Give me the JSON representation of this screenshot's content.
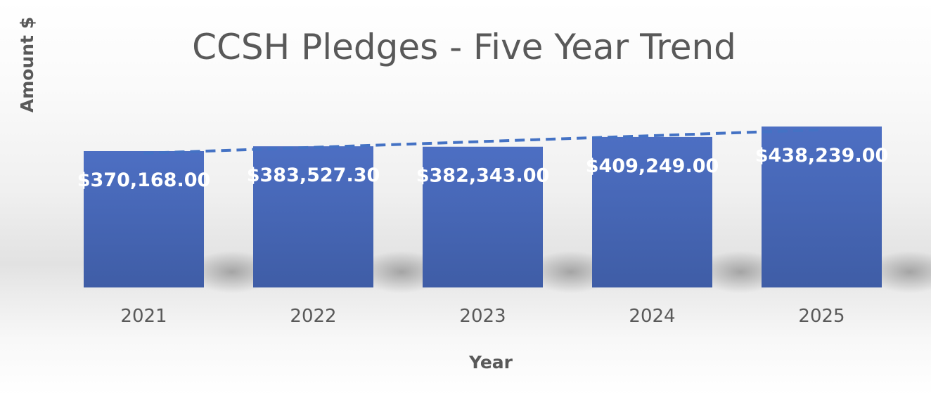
{
  "chart_data": {
    "type": "bar",
    "title": "CCSH Pledges - Five Year Trend",
    "xlabel": "Year",
    "ylabel": "Amount $",
    "categories": [
      "2021",
      "2022",
      "2023",
      "2024",
      "2025"
    ],
    "values": [
      370168.0,
      383527.3,
      382343.0,
      409249.0,
      438239.0
    ],
    "data_labels": [
      "$370,168.00",
      "$383,527.30",
      "$382,343.00",
      "$409,249.00",
      "$438,239.00"
    ],
    "trendline": {
      "type": "linear",
      "style": "dashed"
    },
    "colors": {
      "bar": "#4a6bbf",
      "trendline": "#4472c4"
    },
    "grid": false,
    "legend": "none"
  }
}
